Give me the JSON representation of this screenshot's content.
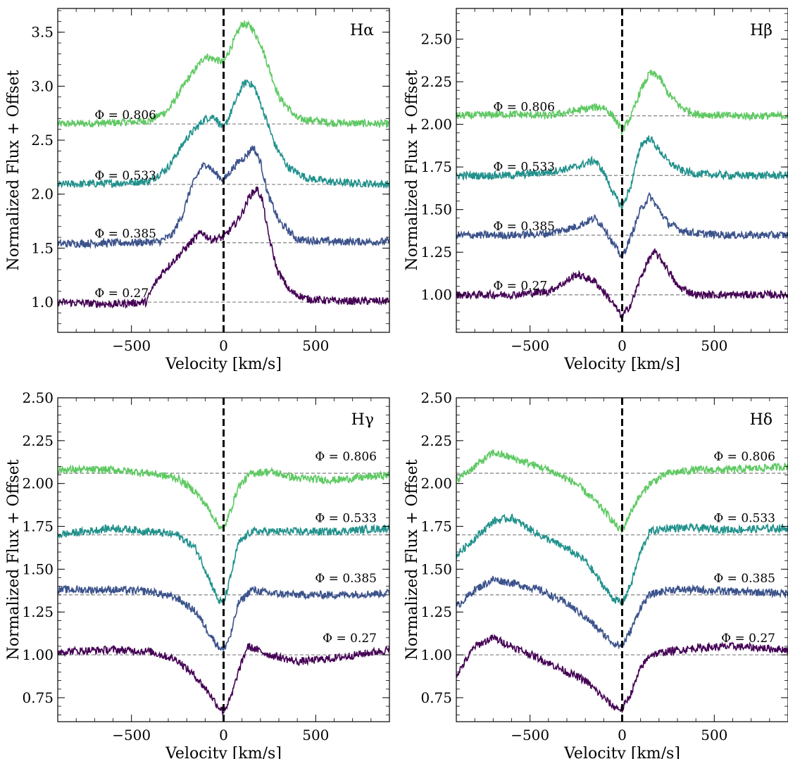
{
  "figure": {
    "xlabel": "Velocity [km/s]",
    "ylabel": "Normalized Flux + Offset",
    "phase_colors": {
      "0.806": "#5ec962",
      "0.533": "#21918c",
      "0.385": "#3b528b",
      "0.27": "#440154"
    },
    "reference_line_color": "#000000",
    "baseline_color": "#808080"
  },
  "chart_data": [
    {
      "type": "line",
      "line_label": "Hα",
      "xlabel": "Velocity [km/s]",
      "ylabel": "Normalized Flux + Offset",
      "xlim": [
        -900,
        900
      ],
      "ylim": [
        0.72,
        3.72
      ],
      "xticks": [
        -500,
        0,
        500
      ],
      "yticks": [
        1.0,
        1.5,
        2.0,
        2.5,
        3.0,
        3.5
      ],
      "ytick_labels": [
        "1.0",
        "1.5",
        "2.0",
        "2.5",
        "3.0",
        "3.5"
      ],
      "phase_label_side": "left",
      "grid": false,
      "series": [
        {
          "name": "Φ = 0.806",
          "offset": 2.65,
          "color": "#5ec962",
          "x": [
            -900,
            -600,
            -400,
            -300,
            -200,
            -100,
            -50,
            0,
            50,
            100,
            150,
            200,
            250,
            300,
            400,
            600,
            900
          ],
          "y": [
            2.65,
            2.66,
            2.68,
            2.78,
            3.05,
            3.28,
            3.25,
            3.22,
            3.4,
            3.58,
            3.55,
            3.4,
            3.15,
            2.9,
            2.7,
            2.66,
            2.65
          ]
        },
        {
          "name": "Φ = 0.533",
          "offset": 2.09,
          "color": "#21918c",
          "x": [
            -900,
            -600,
            -400,
            -300,
            -200,
            -100,
            -50,
            0,
            50,
            100,
            130,
            170,
            220,
            280,
            350,
            450,
            600,
            900
          ],
          "y": [
            2.09,
            2.1,
            2.12,
            2.25,
            2.52,
            2.7,
            2.72,
            2.6,
            2.8,
            3.0,
            3.05,
            2.98,
            2.75,
            2.45,
            2.25,
            2.15,
            2.11,
            2.09
          ]
        },
        {
          "name": "Φ = 0.385",
          "offset": 1.55,
          "color": "#3b528b",
          "x": [
            -900,
            -500,
            -350,
            -280,
            -220,
            -180,
            -120,
            -90,
            -50,
            0,
            40,
            80,
            120,
            160,
            200,
            240,
            300,
            400,
            600,
            900
          ],
          "y": [
            1.54,
            1.55,
            1.56,
            1.62,
            1.82,
            2.05,
            2.25,
            2.28,
            2.2,
            2.13,
            2.22,
            2.3,
            2.35,
            2.44,
            2.3,
            2.0,
            1.75,
            1.58,
            1.56,
            1.56
          ]
        },
        {
          "name": "Φ = 0.27",
          "offset": 1.0,
          "color": "#440154",
          "x": [
            -900,
            -600,
            -420,
            -380,
            -330,
            -250,
            -180,
            -120,
            -70,
            0,
            60,
            100,
            140,
            180,
            210,
            240,
            290,
            360,
            450,
            600,
            900
          ],
          "y": [
            1.0,
            0.98,
            1.0,
            1.15,
            1.28,
            1.42,
            1.55,
            1.65,
            1.58,
            1.6,
            1.72,
            1.82,
            1.98,
            2.05,
            1.95,
            1.65,
            1.3,
            1.1,
            1.03,
            1.01,
            1.01
          ]
        }
      ]
    },
    {
      "type": "line",
      "line_label": "Hβ",
      "xlabel": "Velocity [km/s]",
      "ylabel": "Normalized Flux + Offset",
      "xlim": [
        -900,
        900
      ],
      "ylim": [
        0.78,
        2.68
      ],
      "xticks": [
        -500,
        0,
        500
      ],
      "yticks": [
        1.0,
        1.25,
        1.5,
        1.75,
        2.0,
        2.25,
        2.5
      ],
      "ytick_labels": [
        "1.00",
        "1.25",
        "1.50",
        "1.75",
        "2.00",
        "2.25",
        "2.50"
      ],
      "phase_label_side": "left",
      "grid": false,
      "series": [
        {
          "name": "Φ = 0.806",
          "offset": 2.05,
          "color": "#5ec962",
          "x": [
            -900,
            -600,
            -400,
            -250,
            -150,
            -100,
            -50,
            0,
            50,
            100,
            150,
            200,
            250,
            320,
            400,
            600,
            900
          ],
          "y": [
            2.05,
            2.06,
            2.05,
            2.08,
            2.1,
            2.1,
            2.05,
            1.96,
            2.05,
            2.2,
            2.3,
            2.28,
            2.18,
            2.1,
            2.06,
            2.05,
            2.05
          ]
        },
        {
          "name": "Φ = 0.533",
          "offset": 1.7,
          "color": "#21918c",
          "x": [
            -900,
            -600,
            -400,
            -250,
            -150,
            -100,
            -50,
            0,
            50,
            100,
            150,
            200,
            250,
            320,
            400,
            600,
            900
          ],
          "y": [
            1.7,
            1.7,
            1.72,
            1.75,
            1.79,
            1.72,
            1.6,
            1.51,
            1.65,
            1.88,
            1.92,
            1.85,
            1.78,
            1.73,
            1.71,
            1.7,
            1.7
          ]
        },
        {
          "name": "Φ = 0.385",
          "offset": 1.35,
          "color": "#3b528b",
          "x": [
            -900,
            -600,
            -400,
            -250,
            -150,
            -100,
            -50,
            0,
            50,
            100,
            150,
            200,
            250,
            320,
            400,
            600,
            900
          ],
          "y": [
            1.35,
            1.35,
            1.36,
            1.4,
            1.45,
            1.4,
            1.3,
            1.22,
            1.35,
            1.5,
            1.58,
            1.5,
            1.42,
            1.38,
            1.36,
            1.35,
            1.35
          ]
        },
        {
          "name": "Φ = 0.27",
          "offset": 1.0,
          "color": "#440154",
          "x": [
            -900,
            -600,
            -400,
            -300,
            -250,
            -150,
            -100,
            -50,
            0,
            50,
            100,
            150,
            180,
            230,
            300,
            400,
            600,
            900
          ],
          "y": [
            1.0,
            1.0,
            1.02,
            1.08,
            1.12,
            1.08,
            1.02,
            0.95,
            0.87,
            0.95,
            1.1,
            1.22,
            1.25,
            1.18,
            1.05,
            1.0,
            1.0,
            1.0
          ]
        }
      ]
    },
    {
      "type": "line",
      "line_label": "Hγ",
      "xlabel": "Velocity [km/s]",
      "ylabel": "Normalized Flux + Offset",
      "xlim": [
        -900,
        900
      ],
      "ylim": [
        0.61,
        2.5
      ],
      "xticks": [
        -500,
        0,
        500
      ],
      "yticks": [
        0.75,
        1.0,
        1.25,
        1.5,
        1.75,
        2.0,
        2.25,
        2.5
      ],
      "ytick_labels": [
        "0.75",
        "1.00",
        "1.25",
        "1.50",
        "1.75",
        "2.00",
        "2.25",
        "2.50"
      ],
      "phase_label_side": "right",
      "grid": false,
      "series": [
        {
          "name": "Φ = 0.806",
          "offset": 2.06,
          "color": "#5ec962",
          "x": [
            -900,
            -600,
            -400,
            -250,
            -150,
            -80,
            -30,
            0,
            40,
            80,
            150,
            250,
            400,
            600,
            900
          ],
          "y": [
            2.08,
            2.08,
            2.06,
            2.03,
            1.95,
            1.85,
            1.76,
            1.73,
            1.85,
            1.98,
            2.06,
            2.07,
            2.03,
            2.02,
            2.05
          ]
        },
        {
          "name": "Φ = 0.533",
          "offset": 1.7,
          "color": "#21918c",
          "x": [
            -900,
            -600,
            -400,
            -250,
            -150,
            -80,
            -30,
            0,
            30,
            80,
            150,
            250,
            400,
            600,
            900
          ],
          "y": [
            1.7,
            1.74,
            1.72,
            1.7,
            1.62,
            1.45,
            1.32,
            1.3,
            1.42,
            1.65,
            1.72,
            1.72,
            1.72,
            1.72,
            1.74
          ]
        },
        {
          "name": "Φ = 0.385",
          "offset": 1.35,
          "color": "#3b528b",
          "x": [
            -900,
            -600,
            -400,
            -250,
            -150,
            -80,
            -30,
            0,
            40,
            80,
            150,
            250,
            400,
            600,
            900
          ],
          "y": [
            1.38,
            1.38,
            1.37,
            1.33,
            1.25,
            1.13,
            1.05,
            1.03,
            1.12,
            1.3,
            1.38,
            1.36,
            1.35,
            1.35,
            1.36
          ]
        },
        {
          "name": "Φ = 0.27",
          "offset": 1.0,
          "color": "#440154",
          "x": [
            -900,
            -600,
            -400,
            -250,
            -150,
            -80,
            -30,
            0,
            40,
            80,
            130,
            250,
            400,
            600,
            900
          ],
          "y": [
            1.02,
            1.03,
            1.02,
            0.97,
            0.87,
            0.78,
            0.7,
            0.67,
            0.75,
            0.9,
            1.05,
            1.0,
            0.96,
            0.98,
            1.03
          ]
        }
      ]
    },
    {
      "type": "line",
      "line_label": "Hδ",
      "xlabel": "Velocity [km/s]",
      "ylabel": "Normalized Flux + Offset",
      "xlim": [
        -900,
        900
      ],
      "ylim": [
        0.61,
        2.5
      ],
      "xticks": [
        -500,
        0,
        500
      ],
      "yticks": [
        0.75,
        1.0,
        1.25,
        1.5,
        1.75,
        2.0,
        2.25,
        2.5
      ],
      "ytick_labels": [
        "0.75",
        "1.00",
        "1.25",
        "1.50",
        "1.75",
        "2.00",
        "2.25",
        "2.50"
      ],
      "phase_label_side": "right",
      "grid": false,
      "series": [
        {
          "name": "Φ = 0.806",
          "offset": 2.06,
          "color": "#5ec962",
          "x": [
            -900,
            -800,
            -700,
            -600,
            -400,
            -250,
            -150,
            -80,
            -30,
            0,
            40,
            80,
            150,
            250,
            400,
            600,
            900
          ],
          "y": [
            2.02,
            2.1,
            2.18,
            2.15,
            2.08,
            2.0,
            1.9,
            1.82,
            1.75,
            1.72,
            1.82,
            1.9,
            2.0,
            2.06,
            2.08,
            2.08,
            2.1
          ]
        },
        {
          "name": "Φ = 0.533",
          "offset": 1.7,
          "color": "#21918c",
          "x": [
            -900,
            -800,
            -700,
            -600,
            -450,
            -300,
            -200,
            -100,
            -50,
            0,
            50,
            100,
            150,
            250,
            400,
            600,
            900
          ],
          "y": [
            1.58,
            1.68,
            1.78,
            1.8,
            1.7,
            1.62,
            1.55,
            1.4,
            1.33,
            1.3,
            1.42,
            1.6,
            1.72,
            1.74,
            1.74,
            1.73,
            1.74
          ]
        },
        {
          "name": "Φ = 0.385",
          "offset": 1.35,
          "color": "#3b528b",
          "x": [
            -900,
            -800,
            -700,
            -600,
            -450,
            -300,
            -200,
            -100,
            -50,
            0,
            50,
            100,
            150,
            250,
            400,
            600,
            900
          ],
          "y": [
            1.28,
            1.38,
            1.44,
            1.42,
            1.38,
            1.3,
            1.22,
            1.12,
            1.07,
            1.05,
            1.15,
            1.28,
            1.35,
            1.38,
            1.38,
            1.37,
            1.36
          ]
        },
        {
          "name": "Φ = 0.27",
          "offset": 1.0,
          "color": "#440154",
          "x": [
            -900,
            -800,
            -700,
            -600,
            -450,
            -300,
            -200,
            -100,
            -50,
            0,
            50,
            100,
            150,
            250,
            400,
            600,
            900
          ],
          "y": [
            0.88,
            1.05,
            1.1,
            1.05,
            0.98,
            0.9,
            0.85,
            0.75,
            0.7,
            0.68,
            0.78,
            0.92,
            1.0,
            1.02,
            1.04,
            1.05,
            1.03
          ]
        }
      ]
    }
  ]
}
